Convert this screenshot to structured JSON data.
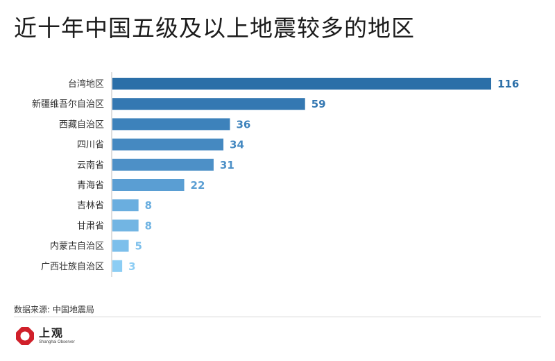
{
  "chart_data": {
    "type": "bar",
    "orientation": "horizontal",
    "title": "近十年中国五级及以上地震较多的地区",
    "categories": [
      "台湾地区",
      "新疆维吾尔自治区",
      "西藏自治区",
      "四川省",
      "云南省",
      "青海省",
      "吉林省",
      "甘肃省",
      "内蒙古自治区",
      "广西壮族自治区"
    ],
    "values": [
      116,
      59,
      36,
      34,
      31,
      22,
      8,
      8,
      5,
      3
    ],
    "value_labels": [
      "116",
      "59",
      "36",
      "34",
      "31",
      "22",
      "8",
      "8",
      "5",
      "3"
    ],
    "xlim": [
      0,
      116
    ],
    "grid": false,
    "colors": [
      "#2b6fa8",
      "#3478b2",
      "#3d82bb",
      "#4589c1",
      "#4d90c7",
      "#5a9ed3",
      "#6aaedf",
      "#72b5e3",
      "#7cbfeb",
      "#8ccdf4"
    ]
  },
  "source": "数据来源: 中国地震局",
  "brand": {
    "name": "上观",
    "subtitle": "Shanghai Observer",
    "logo_icon": "octagon-ring-logo-icon",
    "logo_color": "#d0202a"
  }
}
